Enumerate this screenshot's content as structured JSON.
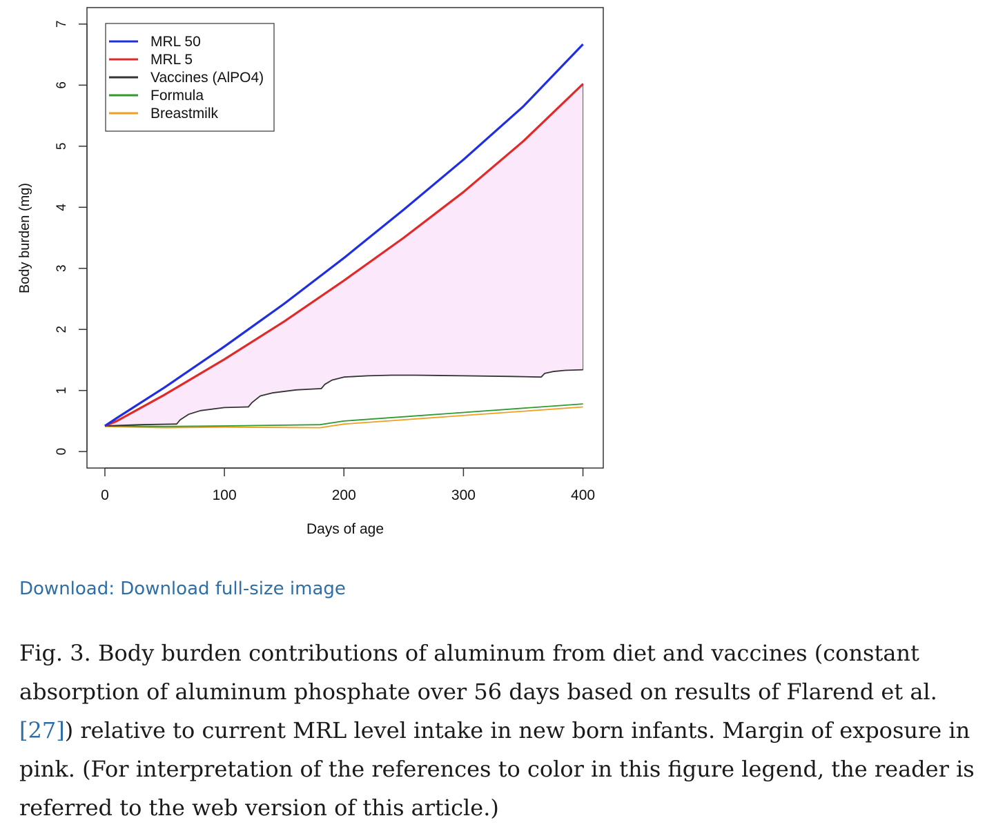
{
  "chart_data": {
    "type": "line",
    "xlabel": "Days of age",
    "ylabel": "Body burden (mg)",
    "xlim": [
      -15,
      417
    ],
    "ylim": [
      -0.27,
      7.27
    ],
    "xticks": [
      "0",
      "100",
      "200",
      "300",
      "400"
    ],
    "yticks": [
      "0",
      "1",
      "2",
      "3",
      "4",
      "5",
      "6",
      "7"
    ],
    "legend_position": "top-left",
    "shaded_region": {
      "between": [
        "MRL 5",
        "Vaccines (AlPO4)"
      ],
      "color": "#fbe8fb",
      "meaning": "Margin of exposure"
    },
    "series": [
      {
        "name": "MRL 50",
        "color": "#1f2fe0",
        "x": [
          0,
          10,
          50,
          100,
          150,
          200,
          250,
          300,
          350,
          400
        ],
        "y": [
          0.42,
          0.55,
          1.05,
          1.72,
          2.42,
          3.17,
          3.96,
          4.78,
          5.65,
          6.67
        ]
      },
      {
        "name": "MRL 5",
        "color": "#e02a2a",
        "x": [
          0,
          10,
          50,
          100,
          150,
          200,
          250,
          300,
          350,
          400
        ],
        "y": [
          0.42,
          0.5,
          0.93,
          1.51,
          2.13,
          2.8,
          3.5,
          4.25,
          5.08,
          6.02
        ]
      },
      {
        "name": "Vaccines (AlPO4)",
        "color": "#333333",
        "x": [
          0,
          30,
          59,
          60,
          63,
          70,
          80,
          100,
          119,
          120,
          123,
          130,
          140,
          160,
          180,
          181,
          184,
          190,
          200,
          220,
          240,
          260,
          300,
          340,
          364,
          365,
          368,
          375,
          385,
          400
        ],
        "y": [
          0.42,
          0.44,
          0.45,
          0.45,
          0.52,
          0.61,
          0.67,
          0.72,
          0.73,
          0.73,
          0.8,
          0.91,
          0.96,
          1.01,
          1.03,
          1.03,
          1.1,
          1.17,
          1.22,
          1.24,
          1.25,
          1.25,
          1.24,
          1.23,
          1.22,
          1.22,
          1.28,
          1.31,
          1.33,
          1.34
        ]
      },
      {
        "name": "Formula",
        "color": "#2f9a2f",
        "x": [
          0,
          50,
          100,
          180,
          200,
          300,
          400
        ],
        "y": [
          0.42,
          0.41,
          0.42,
          0.44,
          0.5,
          0.64,
          0.78
        ]
      },
      {
        "name": "Breastmilk",
        "color": "#f0a020",
        "x": [
          0,
          50,
          100,
          180,
          200,
          300,
          400
        ],
        "y": [
          0.41,
          0.39,
          0.4,
          0.39,
          0.45,
          0.59,
          0.73
        ]
      }
    ]
  },
  "download_label": "Download: Download full-size image",
  "caption": {
    "text_before_ref": "Fig. 3. Body burden contributions of aluminum from diet and vaccines (constant absorption of aluminum phosphate over 56 days based on results of Flarend et al. ",
    "ref_label": "[27]",
    "text_after_ref": ") relative to current MRL level intake in new born infants. Margin of exposure in pink. (For interpretation of the references to color in this figure legend, the reader is referred to the web version of this article.)"
  }
}
